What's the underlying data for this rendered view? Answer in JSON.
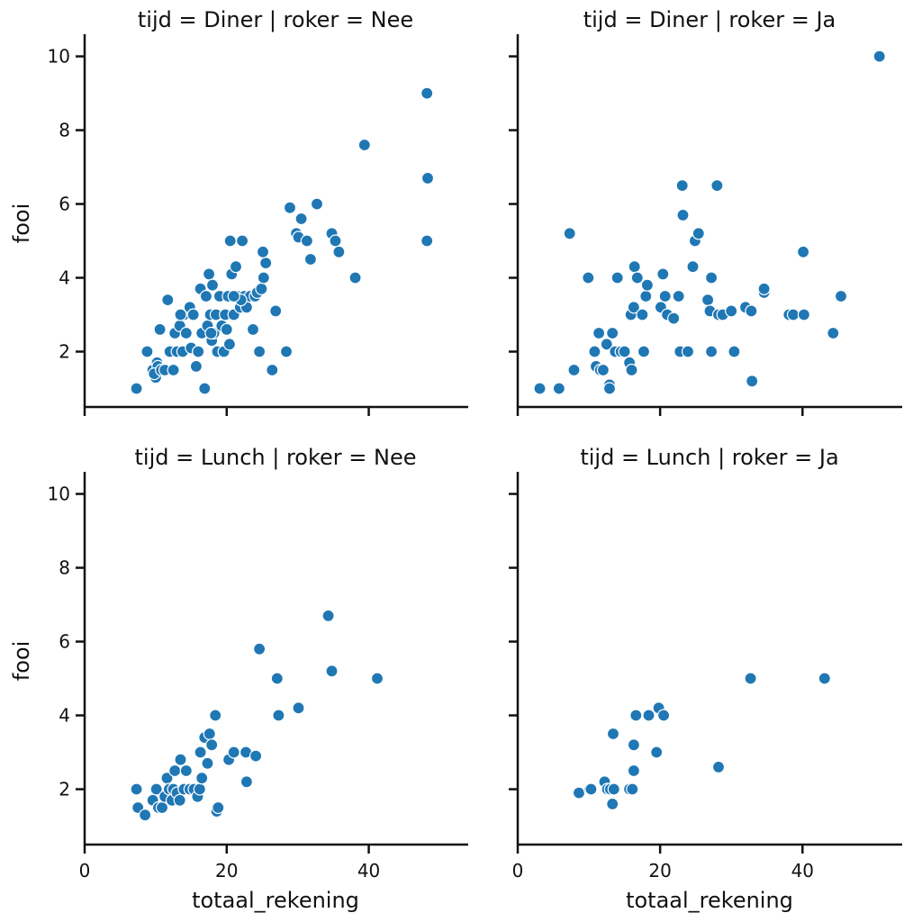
{
  "chart_data": {
    "type": "scatter",
    "xlabel": "totaal_rekening",
    "ylabel": "fooi",
    "x_range": [
      0,
      54
    ],
    "y_range": [
      0.5,
      10.6
    ],
    "x_ticks": [
      0,
      20,
      40
    ],
    "y_ticks": [
      2,
      4,
      6,
      8,
      10
    ],
    "marker_color": "#1f77b4",
    "marker_edge_color": "#ffffff",
    "panels": [
      {
        "title": "tijd = Diner | roker = Nee",
        "points": [
          [
            7.3,
            1.0
          ],
          [
            8.8,
            2.0
          ],
          [
            9.6,
            1.5
          ],
          [
            10.0,
            1.3
          ],
          [
            10.2,
            1.7
          ],
          [
            10.3,
            1.6
          ],
          [
            9.8,
            1.4
          ],
          [
            10.6,
            2.6
          ],
          [
            10.8,
            1.5
          ],
          [
            11.3,
            1.5
          ],
          [
            11.7,
            3.4
          ],
          [
            12.0,
            2.0
          ],
          [
            12.5,
            1.5
          ],
          [
            12.7,
            2.5
          ],
          [
            13.0,
            2.0
          ],
          [
            13.4,
            2.7
          ],
          [
            13.8,
            2.0
          ],
          [
            14.0,
            3.0
          ],
          [
            14.3,
            2.5
          ],
          [
            14.8,
            3.2
          ],
          [
            15.0,
            2.1
          ],
          [
            15.3,
            3.0
          ],
          [
            15.7,
            1.6
          ],
          [
            16.0,
            2.0
          ],
          [
            16.3,
            3.7
          ],
          [
            16.5,
            2.5
          ],
          [
            16.9,
            1.0
          ],
          [
            17.1,
            3.5
          ],
          [
            17.3,
            2.7
          ],
          [
            17.5,
            4.1
          ],
          [
            17.7,
            3.0
          ],
          [
            17.9,
            2.3
          ],
          [
            18.0,
            3.8
          ],
          [
            18.2,
            2.5
          ],
          [
            18.5,
            3.0
          ],
          [
            18.7,
            2.0
          ],
          [
            19.0,
            3.5
          ],
          [
            19.3,
            2.7
          ],
          [
            19.6,
            2.0
          ],
          [
            19.8,
            3.0
          ],
          [
            20.0,
            2.6
          ],
          [
            20.2,
            3.5
          ],
          [
            20.4,
            2.2
          ],
          [
            20.5,
            5.0
          ],
          [
            20.7,
            4.1
          ],
          [
            21.0,
            3.0
          ],
          [
            21.3,
            4.3
          ],
          [
            21.5,
            3.5
          ],
          [
            21.9,
            3.2
          ],
          [
            22.2,
            5.0
          ],
          [
            22.5,
            3.5
          ],
          [
            22.8,
            3.2
          ],
          [
            23.3,
            3.5
          ],
          [
            23.7,
            2.6
          ],
          [
            24.0,
            3.5
          ],
          [
            24.3,
            3.6
          ],
          [
            24.6,
            2.0
          ],
          [
            24.9,
            3.7
          ],
          [
            25.2,
            4.0
          ],
          [
            25.5,
            4.4
          ],
          [
            25.1,
            4.7
          ],
          [
            26.4,
            1.5
          ],
          [
            26.9,
            3.1
          ],
          [
            28.4,
            2.0
          ],
          [
            28.9,
            5.9
          ],
          [
            29.8,
            5.2
          ],
          [
            30.1,
            5.1
          ],
          [
            30.5,
            5.6
          ],
          [
            31.3,
            5.0
          ],
          [
            31.8,
            4.5
          ],
          [
            32.7,
            6.0
          ],
          [
            34.8,
            5.2
          ],
          [
            35.3,
            5.0
          ],
          [
            35.8,
            4.7
          ],
          [
            38.1,
            4.0
          ],
          [
            39.4,
            7.6
          ],
          [
            48.2,
            9.0
          ],
          [
            48.3,
            6.7
          ],
          [
            48.2,
            5.0
          ],
          [
            16.0,
            2.0
          ],
          [
            13.5,
            3.0
          ],
          [
            22.0,
            3.4
          ],
          [
            17.8,
            2.5
          ],
          [
            21.0,
            3.5
          ]
        ]
      },
      {
        "title": "tijd = Diner | roker = Ja",
        "points": [
          [
            3.1,
            1.0
          ],
          [
            5.8,
            1.0
          ],
          [
            7.3,
            5.2
          ],
          [
            7.9,
            1.5
          ],
          [
            9.9,
            4.0
          ],
          [
            10.8,
            2.0
          ],
          [
            11.0,
            1.6
          ],
          [
            11.4,
            2.5
          ],
          [
            11.6,
            1.5
          ],
          [
            12.0,
            1.5
          ],
          [
            12.5,
            2.2
          ],
          [
            12.9,
            1.1
          ],
          [
            12.9,
            1.0
          ],
          [
            13.3,
            2.5
          ],
          [
            13.7,
            2.0
          ],
          [
            14.0,
            4.0
          ],
          [
            14.5,
            2.0
          ],
          [
            15.0,
            2.0
          ],
          [
            15.7,
            1.7
          ],
          [
            15.9,
            3.0
          ],
          [
            16.0,
            1.5
          ],
          [
            16.3,
            3.2
          ],
          [
            16.4,
            4.3
          ],
          [
            16.8,
            4.0
          ],
          [
            17.5,
            3.0
          ],
          [
            17.7,
            2.0
          ],
          [
            18.0,
            3.5
          ],
          [
            18.2,
            3.8
          ],
          [
            20.1,
            3.2
          ],
          [
            20.4,
            4.1
          ],
          [
            20.7,
            3.5
          ],
          [
            21.0,
            3.0
          ],
          [
            21.9,
            2.9
          ],
          [
            22.6,
            3.5
          ],
          [
            22.8,
            2.0
          ],
          [
            23.1,
            6.5
          ],
          [
            23.2,
            5.7
          ],
          [
            23.9,
            2.0
          ],
          [
            24.6,
            4.3
          ],
          [
            24.9,
            5.0
          ],
          [
            25.4,
            5.2
          ],
          [
            26.7,
            3.4
          ],
          [
            27.0,
            3.1
          ],
          [
            27.2,
            4.0
          ],
          [
            27.2,
            2.0
          ],
          [
            28.0,
            6.5
          ],
          [
            28.2,
            3.0
          ],
          [
            28.8,
            3.0
          ],
          [
            30.0,
            3.1
          ],
          [
            30.4,
            2.0
          ],
          [
            32.0,
            3.2
          ],
          [
            32.8,
            3.1
          ],
          [
            32.9,
            1.2
          ],
          [
            34.6,
            3.6
          ],
          [
            34.6,
            3.7
          ],
          [
            38.1,
            3.0
          ],
          [
            38.7,
            3.0
          ],
          [
            40.2,
            3.0
          ],
          [
            40.1,
            4.7
          ],
          [
            44.3,
            2.5
          ],
          [
            45.4,
            3.5
          ],
          [
            50.8,
            10.0
          ]
        ]
      },
      {
        "title": "tijd = Lunch | roker = Nee",
        "points": [
          [
            7.3,
            2.0
          ],
          [
            7.5,
            1.5
          ],
          [
            8.5,
            1.3
          ],
          [
            9.6,
            1.7
          ],
          [
            10.1,
            2.0
          ],
          [
            10.4,
            1.5
          ],
          [
            10.9,
            1.5
          ],
          [
            11.3,
            1.8
          ],
          [
            11.6,
            2.3
          ],
          [
            11.9,
            2.0
          ],
          [
            12.3,
            1.7
          ],
          [
            12.5,
            2.0
          ],
          [
            12.7,
            2.5
          ],
          [
            13.0,
            1.9
          ],
          [
            13.4,
            1.7
          ],
          [
            13.5,
            2.8
          ],
          [
            14.0,
            2.0
          ],
          [
            14.3,
            2.5
          ],
          [
            14.8,
            2.0
          ],
          [
            15.4,
            2.0
          ],
          [
            15.9,
            1.8
          ],
          [
            16.2,
            2.0
          ],
          [
            16.3,
            3.0
          ],
          [
            16.5,
            2.3
          ],
          [
            16.9,
            3.4
          ],
          [
            17.3,
            2.7
          ],
          [
            17.6,
            3.5
          ],
          [
            17.9,
            3.2
          ],
          [
            18.4,
            4.0
          ],
          [
            18.6,
            1.4
          ],
          [
            18.8,
            1.5
          ],
          [
            20.3,
            2.8
          ],
          [
            21.0,
            3.0
          ],
          [
            22.7,
            3.0
          ],
          [
            22.8,
            2.2
          ],
          [
            24.1,
            2.9
          ],
          [
            24.6,
            5.8
          ],
          [
            27.1,
            5.0
          ],
          [
            27.3,
            4.0
          ],
          [
            30.1,
            4.2
          ],
          [
            34.3,
            6.7
          ],
          [
            34.8,
            5.2
          ],
          [
            41.2,
            5.0
          ]
        ]
      },
      {
        "title": "tijd = Lunch | roker = Ja",
        "points": [
          [
            8.6,
            1.9
          ],
          [
            10.1,
            2.0
          ],
          [
            10.3,
            2.0
          ],
          [
            12.2,
            2.2
          ],
          [
            12.6,
            2.0
          ],
          [
            13.0,
            2.0
          ],
          [
            13.3,
            1.6
          ],
          [
            13.4,
            3.5
          ],
          [
            13.5,
            2.0
          ],
          [
            15.7,
            2.0
          ],
          [
            16.1,
            2.0
          ],
          [
            16.3,
            2.5
          ],
          [
            16.3,
            3.2
          ],
          [
            16.6,
            4.0
          ],
          [
            18.4,
            4.0
          ],
          [
            19.5,
            3.0
          ],
          [
            19.8,
            4.2
          ],
          [
            20.5,
            4.0
          ],
          [
            28.2,
            2.6
          ],
          [
            32.7,
            5.0
          ],
          [
            43.1,
            5.0
          ]
        ]
      }
    ]
  }
}
